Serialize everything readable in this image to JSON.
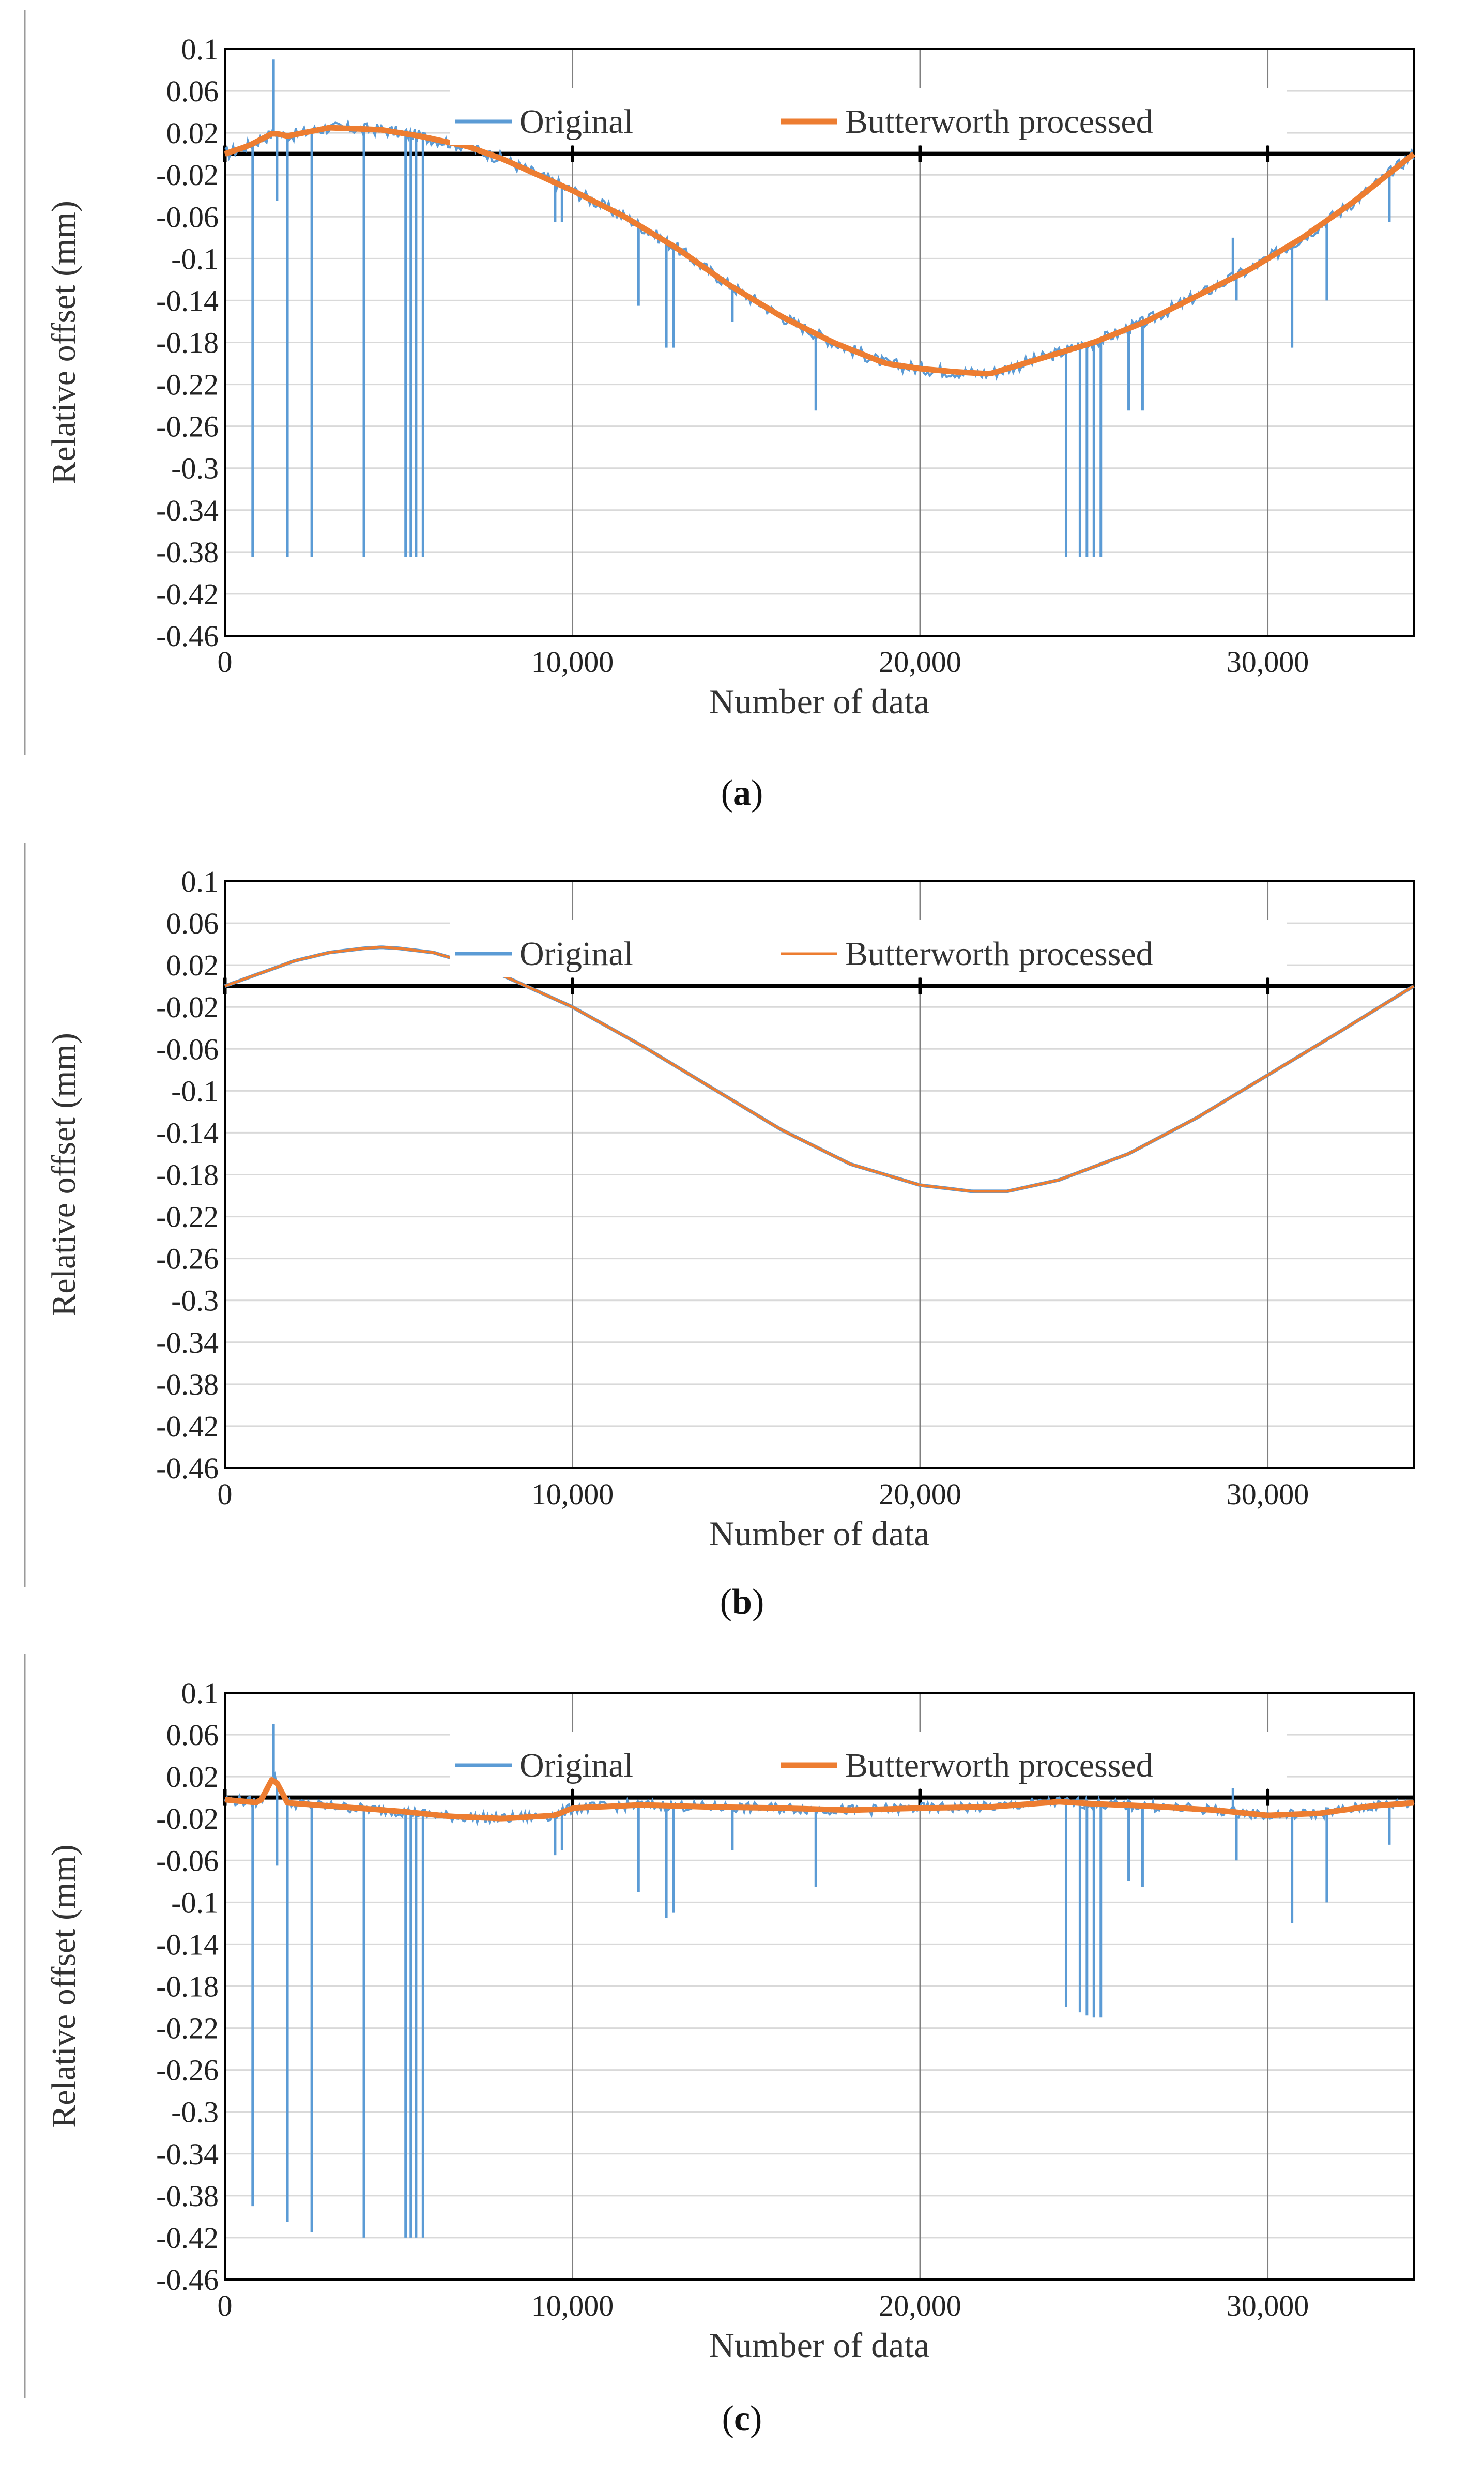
{
  "figure": {
    "panels": [
      {
        "label_open": "(",
        "label_letter": "a",
        "label_close": ")"
      },
      {
        "label_open": "(",
        "label_letter": "b",
        "label_close": ")"
      },
      {
        "label_open": "(",
        "label_letter": "c",
        "label_close": ")"
      }
    ]
  },
  "colors": {
    "original": "#5b9bd5",
    "butterworth": "#ed7d31",
    "zero_line": "#000000",
    "grid": "#d9d9d9",
    "vgrid": "#7f7f7f"
  },
  "chart_data": [
    {
      "type": "line",
      "panel": "a",
      "xlabel": "Number of data",
      "ylabel": "Relative offset (mm)",
      "xlim": [
        0,
        34200
      ],
      "ylim": [
        -0.46,
        0.1
      ],
      "xticks": [
        0,
        10000,
        20000,
        30000
      ],
      "xtick_labels": [
        "0",
        "10,000",
        "20,000",
        "30,000"
      ],
      "yticks": [
        0.1,
        0.06,
        0.02,
        -0.02,
        -0.06,
        -0.1,
        -0.14,
        -0.18,
        -0.22,
        -0.26,
        -0.3,
        -0.34,
        -0.38,
        -0.42,
        -0.46
      ],
      "ytick_labels": [
        "0.1",
        "0.06",
        "0.02",
        "-0.02",
        "-0.06",
        "-0.1",
        "-0.14",
        "-0.18",
        "-0.22",
        "-0.26",
        "-0.3",
        "-0.34",
        "-0.38",
        "-0.42",
        "-0.46"
      ],
      "legend_position": "top",
      "series": [
        {
          "name": "Original",
          "color": "#5b9bd5",
          "style": "thin",
          "x": [
            0,
            700,
            1400,
            1800,
            3000,
            4500,
            5600,
            7000,
            8000,
            9000,
            10000,
            11500,
            13000,
            14500,
            16000,
            17500,
            19000,
            20000,
            21000,
            22000,
            23500,
            25000,
            26500,
            28000,
            29500,
            31000,
            32500,
            34200
          ],
          "y": [
            0,
            0.008,
            0.02,
            0.017,
            0.025,
            0.023,
            0.017,
            0.007,
            -0.005,
            -0.02,
            -0.035,
            -0.06,
            -0.09,
            -0.125,
            -0.155,
            -0.18,
            -0.2,
            -0.205,
            -0.208,
            -0.21,
            -0.195,
            -0.18,
            -0.16,
            -0.135,
            -0.11,
            -0.08,
            -0.045,
            0
          ]
        },
        {
          "name": "Butterworth processed",
          "color": "#ed7d31",
          "style": "thick",
          "x": [
            0,
            700,
            1400,
            1800,
            3000,
            4500,
            5600,
            7000,
            8000,
            9000,
            10000,
            11500,
            13000,
            14500,
            16000,
            17500,
            19000,
            20000,
            21000,
            22000,
            23500,
            25000,
            26500,
            28000,
            29500,
            31000,
            32500,
            34200
          ],
          "y": [
            0,
            0.008,
            0.02,
            0.017,
            0.025,
            0.023,
            0.017,
            0.007,
            -0.005,
            -0.02,
            -0.035,
            -0.06,
            -0.09,
            -0.125,
            -0.155,
            -0.18,
            -0.2,
            -0.205,
            -0.208,
            -0.21,
            -0.195,
            -0.18,
            -0.16,
            -0.135,
            -0.11,
            -0.08,
            -0.045,
            0
          ]
        }
      ],
      "spikes": {
        "series": "Original",
        "events": [
          {
            "x": 1400,
            "to": 0.09
          },
          {
            "x": 1500,
            "to": -0.045
          },
          {
            "x": 800,
            "to": -0.385
          },
          {
            "x": 1800,
            "to": -0.385
          },
          {
            "x": 2500,
            "to": -0.385
          },
          {
            "x": 4000,
            "to": -0.385
          },
          {
            "x": 5200,
            "to": -0.385
          },
          {
            "x": 5350,
            "to": -0.385
          },
          {
            "x": 5500,
            "to": -0.385
          },
          {
            "x": 5700,
            "to": -0.385
          },
          {
            "x": 9500,
            "to": -0.065
          },
          {
            "x": 9700,
            "to": -0.065
          },
          {
            "x": 11900,
            "to": -0.145
          },
          {
            "x": 12700,
            "to": -0.185
          },
          {
            "x": 12900,
            "to": -0.185
          },
          {
            "x": 14600,
            "to": -0.16
          },
          {
            "x": 17000,
            "to": -0.245
          },
          {
            "x": 24200,
            "to": -0.385
          },
          {
            "x": 24600,
            "to": -0.385
          },
          {
            "x": 24800,
            "to": -0.385
          },
          {
            "x": 25000,
            "to": -0.385
          },
          {
            "x": 25200,
            "to": -0.385
          },
          {
            "x": 26000,
            "to": -0.245
          },
          {
            "x": 26400,
            "to": -0.245
          },
          {
            "x": 29000,
            "to": -0.08
          },
          {
            "x": 29100,
            "to": -0.14
          },
          {
            "x": 30700,
            "to": -0.185
          },
          {
            "x": 31700,
            "to": -0.14
          },
          {
            "x": 33500,
            "to": -0.065
          }
        ]
      },
      "noise": 0.006
    },
    {
      "type": "line",
      "panel": "b",
      "xlabel": "Number of data",
      "ylabel": "Relative offset (mm)",
      "xlim": [
        0,
        34200
      ],
      "ylim": [
        -0.46,
        0.1
      ],
      "xticks": [
        0,
        10000,
        20000,
        30000
      ],
      "xtick_labels": [
        "0",
        "10,000",
        "20,000",
        "30,000"
      ],
      "yticks": [
        0.1,
        0.06,
        0.02,
        -0.02,
        -0.06,
        -0.1,
        -0.14,
        -0.18,
        -0.22,
        -0.26,
        -0.3,
        -0.34,
        -0.38,
        -0.42,
        -0.46
      ],
      "ytick_labels": [
        "0.1",
        "0.06",
        "0.02",
        "-0.02",
        "-0.06",
        "-0.1",
        "-0.14",
        "-0.18",
        "-0.22",
        "-0.26",
        "-0.3",
        "-0.34",
        "-0.38",
        "-0.42",
        "-0.46"
      ],
      "legend_position": "top",
      "series": [
        {
          "name": "Original",
          "color": "#5b9bd5",
          "style": "thin",
          "x": [
            0,
            1000,
            2000,
            3000,
            4000,
            4500,
            5000,
            6000,
            7000,
            8000,
            9000,
            10000,
            12000,
            14000,
            16000,
            18000,
            20000,
            21500,
            22500,
            24000,
            26000,
            28000,
            30000,
            32000,
            34200
          ],
          "y": [
            0,
            0.012,
            0.024,
            0.032,
            0.036,
            0.037,
            0.036,
            0.032,
            0.022,
            0.01,
            -0.005,
            -0.02,
            -0.057,
            -0.097,
            -0.137,
            -0.17,
            -0.19,
            -0.196,
            -0.196,
            -0.185,
            -0.16,
            -0.125,
            -0.085,
            -0.045,
            0
          ]
        },
        {
          "name": "Butterworth processed",
          "color": "#ed7d31",
          "style": "thin",
          "x": [
            0,
            1000,
            2000,
            3000,
            4000,
            4500,
            5000,
            6000,
            7000,
            8000,
            9000,
            10000,
            12000,
            14000,
            16000,
            18000,
            20000,
            21500,
            22500,
            24000,
            26000,
            28000,
            30000,
            32000,
            34200
          ],
          "y": [
            0,
            0.012,
            0.024,
            0.032,
            0.036,
            0.037,
            0.036,
            0.032,
            0.022,
            0.01,
            -0.005,
            -0.02,
            -0.057,
            -0.097,
            -0.137,
            -0.17,
            -0.19,
            -0.196,
            -0.196,
            -0.185,
            -0.16,
            -0.125,
            -0.085,
            -0.045,
            0
          ]
        }
      ],
      "spikes": {
        "series": "Original",
        "events": []
      },
      "noise": 0
    },
    {
      "type": "line",
      "panel": "c",
      "xlabel": "Number of data",
      "ylabel": "Relative offset (mm)",
      "xlim": [
        0,
        34200
      ],
      "ylim": [
        -0.46,
        0.1
      ],
      "xticks": [
        0,
        10000,
        20000,
        30000
      ],
      "xtick_labels": [
        "0",
        "10,000",
        "20,000",
        "30,000"
      ],
      "yticks": [
        0.1,
        0.06,
        0.02,
        -0.02,
        -0.06,
        -0.1,
        -0.14,
        -0.18,
        -0.22,
        -0.26,
        -0.3,
        -0.34,
        -0.38,
        -0.42,
        -0.46
      ],
      "ytick_labels": [
        "0.1",
        "0.06",
        "0.02",
        "-0.02",
        "-0.06",
        "-0.1",
        "-0.14",
        "-0.18",
        "-0.22",
        "-0.26",
        "-0.3",
        "-0.34",
        "-0.38",
        "-0.42",
        "-0.46"
      ],
      "legend_position": "top",
      "series": [
        {
          "name": "Original",
          "color": "#5b9bd5",
          "style": "thin",
          "x": [
            0,
            1000,
            1400,
            1800,
            3000,
            5000,
            6500,
            8000,
            9500,
            10000,
            12000,
            14000,
            16000,
            18000,
            20000,
            22000,
            24000,
            25000,
            26500,
            28500,
            30000,
            31500,
            33000,
            34200
          ],
          "y": [
            -0.002,
            -0.005,
            0.02,
            -0.005,
            -0.008,
            -0.013,
            -0.018,
            -0.02,
            -0.017,
            -0.01,
            -0.007,
            -0.009,
            -0.01,
            -0.012,
            -0.01,
            -0.009,
            -0.004,
            -0.006,
            -0.008,
            -0.012,
            -0.017,
            -0.015,
            -0.008,
            -0.005
          ]
        },
        {
          "name": "Butterworth processed",
          "color": "#ed7d31",
          "style": "thick",
          "x": [
            0,
            1000,
            1400,
            1800,
            3000,
            5000,
            6500,
            8000,
            9500,
            10000,
            12000,
            14000,
            16000,
            18000,
            20000,
            22000,
            24000,
            25000,
            26500,
            28500,
            30000,
            31500,
            33000,
            34200
          ],
          "y": [
            -0.002,
            -0.005,
            0.02,
            -0.005,
            -0.008,
            -0.013,
            -0.018,
            -0.02,
            -0.017,
            -0.01,
            -0.007,
            -0.009,
            -0.01,
            -0.012,
            -0.01,
            -0.009,
            -0.004,
            -0.006,
            -0.008,
            -0.012,
            -0.017,
            -0.015,
            -0.008,
            -0.005
          ]
        }
      ],
      "spikes": {
        "series": "Original",
        "events": [
          {
            "x": 1400,
            "to": 0.07
          },
          {
            "x": 1500,
            "to": -0.065
          },
          {
            "x": 800,
            "to": -0.39
          },
          {
            "x": 1800,
            "to": -0.405
          },
          {
            "x": 2500,
            "to": -0.415
          },
          {
            "x": 4000,
            "to": -0.42
          },
          {
            "x": 5200,
            "to": -0.42
          },
          {
            "x": 5350,
            "to": -0.42
          },
          {
            "x": 5500,
            "to": -0.42
          },
          {
            "x": 5700,
            "to": -0.42
          },
          {
            "x": 9500,
            "to": -0.055
          },
          {
            "x": 9700,
            "to": -0.05
          },
          {
            "x": 11900,
            "to": -0.09
          },
          {
            "x": 12700,
            "to": -0.115
          },
          {
            "x": 12900,
            "to": -0.11
          },
          {
            "x": 14600,
            "to": -0.05
          },
          {
            "x": 17000,
            "to": -0.085
          },
          {
            "x": 24200,
            "to": -0.2
          },
          {
            "x": 24600,
            "to": -0.205
          },
          {
            "x": 24800,
            "to": -0.208
          },
          {
            "x": 25000,
            "to": -0.21
          },
          {
            "x": 25200,
            "to": -0.21
          },
          {
            "x": 26000,
            "to": -0.08
          },
          {
            "x": 26400,
            "to": -0.085
          },
          {
            "x": 29000,
            "to": 0.022
          },
          {
            "x": 29100,
            "to": -0.06
          },
          {
            "x": 30700,
            "to": -0.12
          },
          {
            "x": 31700,
            "to": -0.1
          },
          {
            "x": 33500,
            "to": -0.045
          }
        ]
      },
      "noise": 0.005
    }
  ]
}
